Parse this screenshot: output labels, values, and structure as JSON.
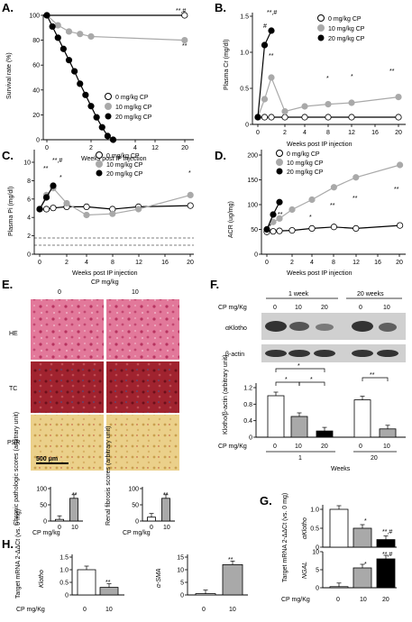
{
  "panels": {
    "A": {
      "letter": "A.",
      "ylabel": "Survival rate (%)",
      "xlabel": "Weeks post IP injection",
      "yticks": [
        "0",
        "20",
        "40",
        "60",
        "80",
        "100"
      ],
      "xticks": [
        "0",
        "2",
        "4",
        "12",
        "20"
      ],
      "legend": [
        "0 mg/kg CP",
        "10 mg/kg CP",
        "20 mg/kg CP"
      ],
      "sig_top": "**,#",
      "sig_bottom": "**"
    },
    "B": {
      "letter": "B.",
      "ylabel": "Plasma Cr (mg/dl)",
      "xlabel": "Weeks post IP injection",
      "yticks": [
        "0",
        "0.5",
        "1.0",
        "1.5"
      ],
      "xticks": [
        "0",
        "2",
        "4",
        "8",
        "12",
        "16",
        "20"
      ],
      "legend": [
        "0 mg/kg CP",
        "10 mg/kg CP",
        "20 mg/kg CP"
      ],
      "sig": [
        "**,#",
        "#",
        "**",
        "*",
        "*",
        "**"
      ]
    },
    "C": {
      "letter": "C.",
      "ylabel": "Plasma Pi (mg/dl)",
      "xlabel": "Weeks post IP injection",
      "yticks": [
        "0",
        "2",
        "4",
        "6",
        "8",
        "10"
      ],
      "xticks": [
        "0",
        "2",
        "4",
        "8",
        "12",
        "16",
        "20"
      ],
      "legend": [
        "0 mg/kg CP",
        "10 mg/kg CP",
        "20 mg/kg CP"
      ],
      "sig": [
        "**,#",
        "**",
        "*",
        "*"
      ]
    },
    "D": {
      "letter": "D.",
      "ylabel": "ACR (ug/mg)",
      "xlabel": "Weeks post IP injection",
      "yticks": [
        "0",
        "50",
        "100",
        "150",
        "200"
      ],
      "xticks": [
        "0",
        "2",
        "4",
        "8",
        "12",
        "16",
        "20"
      ],
      "legend": [
        "0 mg/kg CP",
        "10 mg/kg CP",
        "20 mg/kg CP"
      ],
      "sig": [
        "*",
        "**",
        "*",
        "**",
        "**",
        "**"
      ]
    },
    "E": {
      "letter": "E.",
      "title": "CP mg/kg",
      "cols": [
        "0",
        "10"
      ],
      "rows": [
        "HE",
        "TC",
        "PSR"
      ],
      "scale": "500 μm",
      "bar1_ylabel": "Chronic pathologic scores (arbitrary unit)",
      "bar2_ylabel": "Renal fibrosis scores (arbitrary unit)",
      "bar_xlabel": "CP mg/kg",
      "bar_x": [
        "0",
        "10"
      ],
      "bar1_yticks": [
        "0",
        "50",
        "100"
      ],
      "bar2_yticks": [
        "0",
        "50",
        "100"
      ],
      "sig": "**"
    },
    "F": {
      "letter": "F.",
      "wk1": "1 week",
      "wk20": "20 weeks",
      "cp_label": "CP mg/Kg",
      "lanes": [
        "0",
        "10",
        "20",
        "0",
        "10"
      ],
      "blot1": "αKlotho",
      "blot2": "β-actin",
      "ylabel": "Klotho/β-actin (arbitrary unit)",
      "yticks": [
        "0",
        "0.4",
        "0.8",
        "1.2"
      ],
      "sig": [
        "*",
        "*",
        "*",
        "**"
      ],
      "weeks_label": "Weeks",
      "week_vals": [
        "1",
        "20"
      ]
    },
    "G": {
      "letter": "G.",
      "ylabel": "Target mRNA 2-ΔΔCt (vs. 0 mg)",
      "gene1": "αKlotho",
      "gene2": "NGAL",
      "yticks1": [
        "0",
        "0.5",
        "1.0"
      ],
      "yticks2": [
        "0",
        "5",
        "10"
      ],
      "cp_label": "CP mg/Kg",
      "x": [
        "0",
        "10",
        "20"
      ],
      "sig1": [
        "*",
        "**,#"
      ],
      "sig2": [
        "*",
        "**,#"
      ]
    },
    "H": {
      "letter": "H.",
      "ylabel": "Target mRNA 2-ΔΔCt (vs. 0 mg)",
      "gene1": "Klotho",
      "gene2": "α-SMA",
      "yticks1": [
        "0",
        "0.5",
        "1.0",
        "1.5"
      ],
      "yticks2": [
        "0",
        "5",
        "10",
        "15"
      ],
      "cp_label": "CP mg/Kg",
      "x": [
        "0",
        "10"
      ],
      "sig": [
        "**",
        "**"
      ]
    }
  },
  "colors": {
    "c0": "#ffffff",
    "c10": "#a9a9a9",
    "c20": "#000000",
    "he": "#d94a7a",
    "tc": "#9b1b2a",
    "psr": "#e2bf6a"
  },
  "chart_data": [
    {
      "type": "line",
      "name": "A",
      "x": [
        0,
        0.25,
        0.5,
        0.75,
        1,
        1.25,
        1.5,
        1.75,
        2,
        2.25,
        2.5,
        2.75,
        3,
        20
      ],
      "series": [
        {
          "name": "0 mg/kg CP",
          "x": [
            0,
            20
          ],
          "values": [
            100,
            100
          ]
        },
        {
          "name": "10 mg/kg CP",
          "x": [
            0,
            0.5,
            1,
            1.5,
            2,
            20
          ],
          "values": [
            100,
            92,
            87,
            85,
            83,
            80
          ]
        },
        {
          "name": "20 mg/kg CP",
          "x": [
            0,
            0.25,
            0.5,
            0.75,
            1,
            1.25,
            1.5,
            1.75,
            2,
            2.25,
            2.5,
            2.75,
            3
          ],
          "values": [
            100,
            91,
            82,
            73,
            64,
            55,
            45,
            36,
            27,
            18,
            10,
            3,
            0
          ]
        }
      ],
      "ylim": [
        0,
        100
      ]
    },
    {
      "type": "line",
      "name": "B",
      "series": [
        {
          "name": "0 mg/kg CP",
          "x": [
            0,
            0.5,
            1,
            2,
            4,
            8,
            12,
            20
          ],
          "values": [
            0.1,
            0.1,
            0.1,
            0.1,
            0.1,
            0.1,
            0.1,
            0.1
          ]
        },
        {
          "name": "10 mg/kg CP",
          "x": [
            0,
            0.5,
            1,
            2,
            4,
            8,
            12,
            20
          ],
          "values": [
            0.1,
            0.35,
            0.65,
            0.18,
            0.25,
            0.28,
            0.3,
            0.38
          ]
        },
        {
          "name": "20 mg/kg CP",
          "x": [
            0,
            0.5,
            1
          ],
          "values": [
            0.1,
            1.1,
            1.3
          ]
        }
      ],
      "ylim": [
        0,
        1.5
      ]
    },
    {
      "type": "line",
      "name": "C",
      "series": [
        {
          "name": "0 mg/kg CP",
          "x": [
            0,
            0.5,
            1,
            2,
            4,
            8,
            12,
            20
          ],
          "values": [
            6,
            6,
            6.1,
            6.2,
            6.2,
            6.0,
            6.2,
            6.3
          ]
        },
        {
          "name": "10 mg/kg CP",
          "x": [
            0,
            0.5,
            1,
            2,
            4,
            8,
            12,
            20
          ],
          "values": [
            6,
            7.2,
            7.8,
            6.5,
            5.5,
            5.6,
            6.0,
            7.2
          ]
        },
        {
          "name": "20 mg/kg CP",
          "x": [
            0,
            0.5,
            1
          ],
          "values": [
            6,
            7.0,
            8.0
          ]
        }
      ],
      "ylim": [
        0,
        10
      ]
    },
    {
      "type": "line",
      "name": "D",
      "series": [
        {
          "name": "0 mg/kg CP",
          "x": [
            0,
            0.5,
            1,
            2,
            4,
            8,
            12,
            20
          ],
          "values": [
            45,
            46,
            47,
            48,
            52,
            55,
            52,
            58
          ]
        },
        {
          "name": "10 mg/kg CP",
          "x": [
            0,
            0.5,
            1,
            2,
            4,
            8,
            12,
            20
          ],
          "values": [
            50,
            65,
            72,
            90,
            110,
            135,
            155,
            180
          ]
        },
        {
          "name": "20 mg/kg CP",
          "x": [
            0,
            0.5,
            1
          ],
          "values": [
            50,
            80,
            105
          ]
        }
      ],
      "ylim": [
        0,
        200
      ]
    },
    {
      "type": "bar",
      "name": "E-chronic",
      "categories": [
        "0",
        "10"
      ],
      "values": [
        5,
        70
      ],
      "ylim": [
        0,
        100
      ]
    },
    {
      "type": "bar",
      "name": "E-fibrosis",
      "categories": [
        "0",
        "10"
      ],
      "values": [
        12,
        70
      ],
      "ylim": [
        0,
        100
      ]
    },
    {
      "type": "bar",
      "name": "F",
      "categories": [
        "0",
        "10",
        "20",
        "0",
        "10"
      ],
      "values": [
        1.0,
        0.5,
        0.15,
        0.9,
        0.2
      ],
      "ylim": [
        0,
        1.2
      ]
    },
    {
      "type": "bar",
      "name": "G-aKlotho",
      "categories": [
        "0",
        "10",
        "20"
      ],
      "values": [
        1.0,
        0.5,
        0.2
      ],
      "ylim": [
        0,
        1.0
      ]
    },
    {
      "type": "bar",
      "name": "G-NGAL",
      "categories": [
        "0",
        "10",
        "20"
      ],
      "values": [
        0.3,
        5.5,
        8.0
      ],
      "ylim": [
        0,
        10
      ]
    },
    {
      "type": "bar",
      "name": "H-Klotho",
      "categories": [
        "0",
        "10"
      ],
      "values": [
        1.0,
        0.3
      ],
      "ylim": [
        0,
        1.5
      ]
    },
    {
      "type": "bar",
      "name": "H-aSMA",
      "categories": [
        "0",
        "10"
      ],
      "values": [
        0.5,
        12
      ],
      "ylim": [
        0,
        15
      ]
    }
  ]
}
